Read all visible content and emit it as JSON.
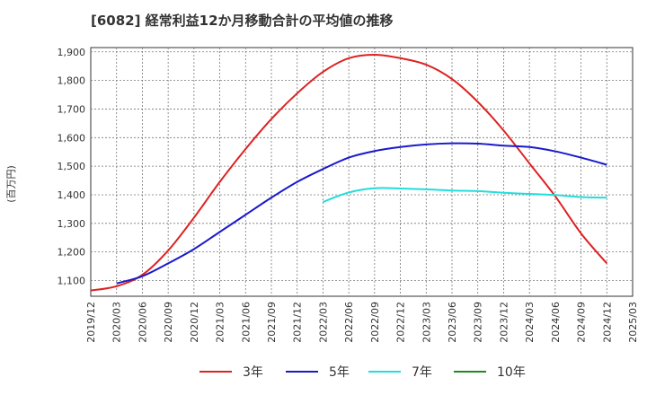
{
  "chart_data": {
    "type": "line",
    "title": "[6082]  経常利益12か月移動合計の平均値の推移",
    "ylabel": "(百万円)",
    "xlabel": "",
    "ylim": [
      1045,
      1915
    ],
    "yticks": [
      1100,
      1200,
      1300,
      1400,
      1500,
      1600,
      1700,
      1800,
      1900
    ],
    "ytick_labels": [
      "1,100",
      "1,200",
      "1,300",
      "1,400",
      "1,500",
      "1,600",
      "1,700",
      "1,800",
      "1,900"
    ],
    "xticks": [
      "2019/12",
      "2020/03",
      "2020/06",
      "2020/09",
      "2020/12",
      "2021/03",
      "2021/06",
      "2021/09",
      "2021/12",
      "2022/03",
      "2022/06",
      "2022/09",
      "2022/12",
      "2023/03",
      "2023/06",
      "2023/09",
      "2023/12",
      "2024/03",
      "2024/06",
      "2024/09",
      "2024/12",
      "2025/03"
    ],
    "grid": true,
    "legend_position": "bottom",
    "series": [
      {
        "name": "3年",
        "color": "#dd2222",
        "x": [
          "2019/12",
          "2020/03",
          "2020/06",
          "2020/09",
          "2020/12",
          "2021/03",
          "2021/06",
          "2021/09",
          "2021/12",
          "2022/03",
          "2022/06",
          "2022/09",
          "2022/12",
          "2023/03",
          "2023/06",
          "2023/09",
          "2023/12",
          "2024/03",
          "2024/06",
          "2024/09",
          "2024/12"
        ],
        "values": [
          1065,
          1080,
          1120,
          1205,
          1320,
          1445,
          1560,
          1665,
          1755,
          1830,
          1878,
          1890,
          1878,
          1855,
          1805,
          1725,
          1625,
          1510,
          1395,
          1265,
          1160
        ]
      },
      {
        "name": "5年",
        "color": "#1a1acc",
        "x": [
          "2020/03",
          "2020/06",
          "2020/09",
          "2020/12",
          "2021/03",
          "2021/06",
          "2021/09",
          "2021/12",
          "2022/03",
          "2022/06",
          "2022/09",
          "2022/12",
          "2023/03",
          "2023/06",
          "2023/09",
          "2023/12",
          "2024/03",
          "2024/06",
          "2024/09",
          "2024/12"
        ],
        "values": [
          1090,
          1115,
          1160,
          1210,
          1270,
          1330,
          1390,
          1445,
          1490,
          1530,
          1553,
          1567,
          1576,
          1580,
          1579,
          1572,
          1567,
          1552,
          1530,
          1505
        ]
      },
      {
        "name": "7年",
        "color": "#22dddd",
        "x": [
          "2022/03",
          "2022/06",
          "2022/09",
          "2022/12",
          "2023/03",
          "2023/06",
          "2023/09",
          "2023/12",
          "2024/03",
          "2024/06",
          "2024/09",
          "2024/12"
        ],
        "values": [
          1375,
          1408,
          1423,
          1422,
          1419,
          1415,
          1413,
          1407,
          1403,
          1399,
          1392,
          1390
        ]
      },
      {
        "name": "10年",
        "color": "#228822",
        "x": [],
        "values": []
      }
    ]
  }
}
